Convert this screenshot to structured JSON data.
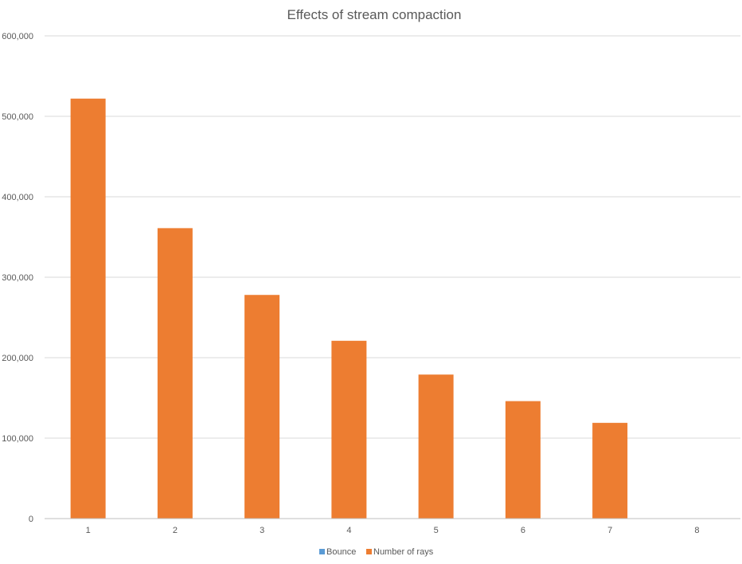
{
  "chart_data": {
    "type": "bar",
    "title": "Effects of stream compaction",
    "xlabel": "",
    "ylabel": "",
    "categories": [
      "1",
      "2",
      "3",
      "4",
      "5",
      "6",
      "7",
      "8"
    ],
    "y_ticks": [
      "0",
      "100,000",
      "200,000",
      "300,000",
      "400,000",
      "500,000",
      "600,000"
    ],
    "y_tick_values": [
      0,
      100000,
      200000,
      300000,
      400000,
      500000,
      600000
    ],
    "ylim": [
      0,
      600000
    ],
    "grid": true,
    "legend_position": "bottom",
    "series": [
      {
        "name": "Bounce",
        "color": "#5b9bd5",
        "values": [
          1,
          2,
          3,
          4,
          5,
          6,
          7,
          8
        ]
      },
      {
        "name": "Number of rays",
        "color": "#ed7d31",
        "values": [
          522000,
          361000,
          278000,
          221000,
          179000,
          146000,
          119000,
          0
        ]
      }
    ]
  }
}
